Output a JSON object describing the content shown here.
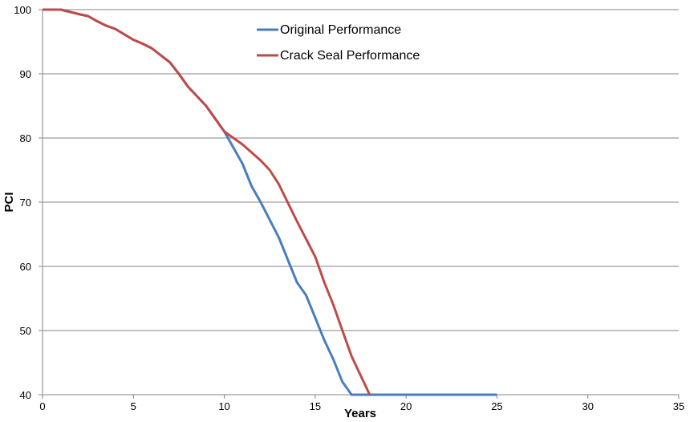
{
  "chart_data": {
    "type": "line",
    "title": "",
    "xlabel": "Years",
    "ylabel": "PCI",
    "xlim": [
      0,
      35
    ],
    "ylim": [
      40,
      100
    ],
    "xticks": [
      0,
      5,
      10,
      15,
      20,
      25,
      30,
      35
    ],
    "yticks": [
      40,
      50,
      60,
      70,
      80,
      90,
      100
    ],
    "grid": "horizontal",
    "legend_position": "top-center",
    "series": [
      {
        "name": "Original Performance",
        "color": "#4a7ebb",
        "points": [
          [
            0,
            100
          ],
          [
            1,
            100
          ],
          [
            2,
            99.3
          ],
          [
            2.5,
            99
          ],
          [
            3,
            98.2
          ],
          [
            3.5,
            97.5
          ],
          [
            4,
            97
          ],
          [
            5,
            95.3
          ],
          [
            5.5,
            94.7
          ],
          [
            6,
            94
          ],
          [
            7,
            91.8
          ],
          [
            7.5,
            90
          ],
          [
            8,
            88
          ],
          [
            8.5,
            86.5
          ],
          [
            9,
            85
          ],
          [
            10,
            81
          ],
          [
            11,
            76
          ],
          [
            11.5,
            72.5
          ],
          [
            12,
            70
          ],
          [
            13,
            64.5
          ],
          [
            14,
            57.5
          ],
          [
            14.5,
            55.5
          ],
          [
            15,
            52
          ],
          [
            15.5,
            48.5
          ],
          [
            16,
            45.5
          ],
          [
            16.5,
            42
          ],
          [
            17,
            40
          ],
          [
            20,
            40
          ],
          [
            25,
            40
          ]
        ]
      },
      {
        "name": "Crack Seal Performance",
        "color": "#be4b48",
        "points": [
          [
            0,
            100
          ],
          [
            1,
            100
          ],
          [
            2,
            99.3
          ],
          [
            2.5,
            99
          ],
          [
            3,
            98.2
          ],
          [
            3.5,
            97.5
          ],
          [
            4,
            97
          ],
          [
            5,
            95.3
          ],
          [
            5.5,
            94.7
          ],
          [
            6,
            94
          ],
          [
            7,
            91.8
          ],
          [
            7.5,
            90
          ],
          [
            8,
            88
          ],
          [
            8.5,
            86.5
          ],
          [
            9,
            85
          ],
          [
            10,
            81
          ],
          [
            11,
            79
          ],
          [
            12,
            76.5
          ],
          [
            12.5,
            75
          ],
          [
            13,
            72.8
          ],
          [
            14,
            67
          ],
          [
            15,
            61.5
          ],
          [
            15.5,
            57.5
          ],
          [
            16,
            54
          ],
          [
            16.5,
            50
          ],
          [
            17,
            46
          ],
          [
            17.5,
            43
          ],
          [
            18,
            40
          ]
        ]
      }
    ]
  }
}
